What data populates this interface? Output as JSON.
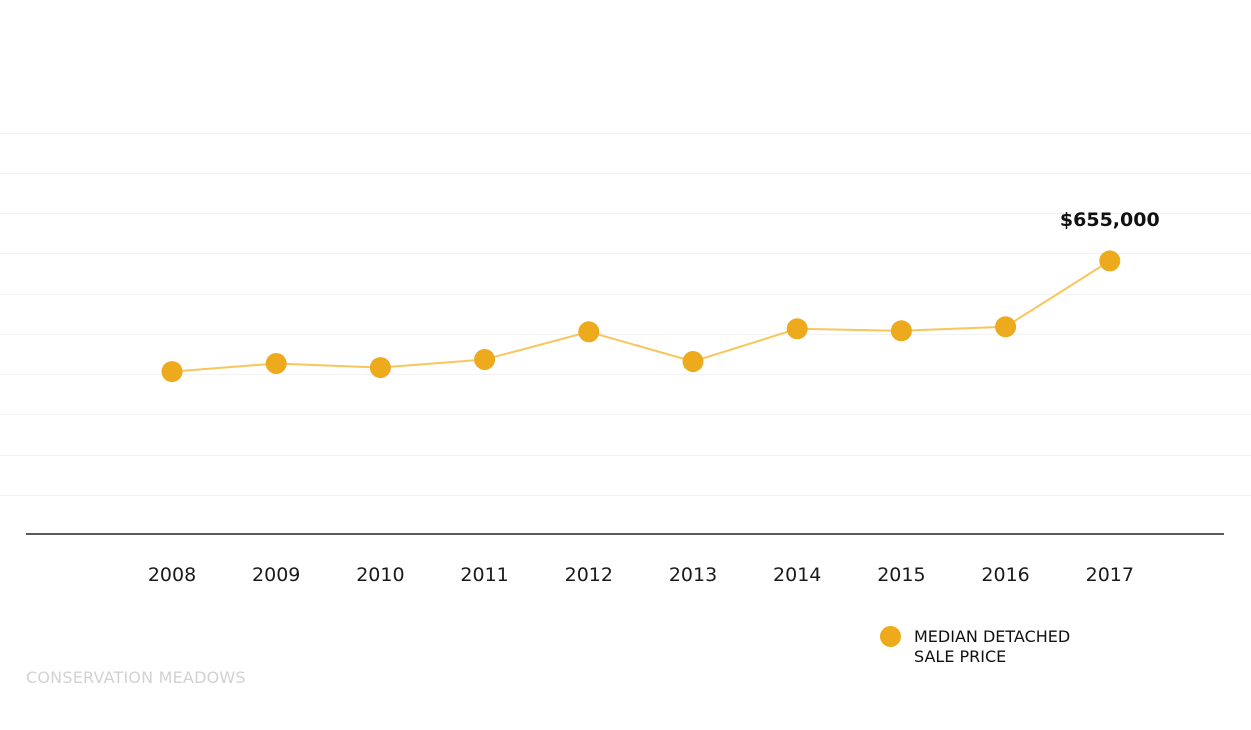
{
  "chart_data": {
    "type": "line",
    "title": "",
    "xlabel": "",
    "ylabel": "",
    "categories": [
      "2008",
      "2009",
      "2010",
      "2011",
      "2012",
      "2013",
      "2014",
      "2015",
      "2016",
      "2017"
    ],
    "series": [
      {
        "name": "MEDIAN DETACHED SALE PRICE",
        "values": [
          435000,
          451000,
          443000,
          459000,
          514000,
          455000,
          520000,
          516000,
          524000,
          655000
        ],
        "color": "#ecaa1c",
        "line_color": "#f7c65c"
      }
    ],
    "data_labels": [
      {
        "category": "2017",
        "text": "$655,000"
      }
    ],
    "ylim": [
      150000,
      925000
    ],
    "y_gridlines": [
      190000,
      270000,
      350000,
      430000,
      510000,
      590000,
      670000,
      750000,
      830000,
      910000
    ],
    "grid": true,
    "y_tick_labels_visible": false,
    "legend_placement": "bottom-right"
  },
  "legend": {
    "line1": "MEDIAN DETACHED",
    "line2": "SALE PRICE"
  },
  "watermark": "CONSERVATION MEADOWS"
}
